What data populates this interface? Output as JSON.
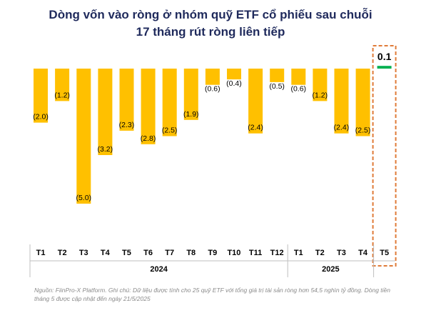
{
  "title_line1": "Dòng vốn vào ròng ở nhóm quỹ ETF cổ phiếu sau chuỗi",
  "title_line2": "17 tháng rút ròng liên tiếp",
  "source_note": "Nguồn: FiinPro-X Platform. Ghi chú: Dữ liệu được tính cho 25 quỹ ETF với tổng giá trị tài sản ròng hơn 54,5 nghìn tỷ đồng. Dòng tiền tháng 5 được cập nhật đến ngày 21/5/2025",
  "colors": {
    "negative_bar": "#FFC000",
    "positive_bar": "#00B050",
    "highlight_box": "#E07B39",
    "axis_text": "#000000",
    "separator": "#BFBFBF"
  },
  "chart_data": {
    "type": "bar",
    "categories": [
      "T1",
      "T2",
      "T3",
      "T4",
      "T5",
      "T6",
      "T7",
      "T8",
      "T9",
      "T10",
      "T11",
      "T12",
      "T1",
      "T2",
      "T3",
      "T4",
      "T5"
    ],
    "year_groups": [
      {
        "label": "2024",
        "start": 0,
        "end": 11
      },
      {
        "label": "2025",
        "start": 12,
        "end": 15
      }
    ],
    "values": [
      -2.0,
      -1.2,
      -5.0,
      -3.2,
      -2.3,
      -2.8,
      -2.5,
      -1.9,
      -0.6,
      -0.4,
      -2.4,
      -0.5,
      -0.6,
      -1.2,
      -2.4,
      -2.5,
      0.1
    ],
    "data_labels": [
      "(2.0)",
      "(1.2)",
      "(5.0)",
      "(3.2)",
      "(2.3)",
      "(2.8)",
      "(2.5)",
      "(1.9)",
      "(0.6)",
      "(0.4)",
      "(2.4)",
      "(0.5)",
      "(0.6)",
      "(1.2)",
      "(2.4)",
      "(2.5)",
      "0.1"
    ],
    "highlighted_index": 16,
    "ylim": [
      -5.0,
      0.1
    ],
    "grid": false
  }
}
